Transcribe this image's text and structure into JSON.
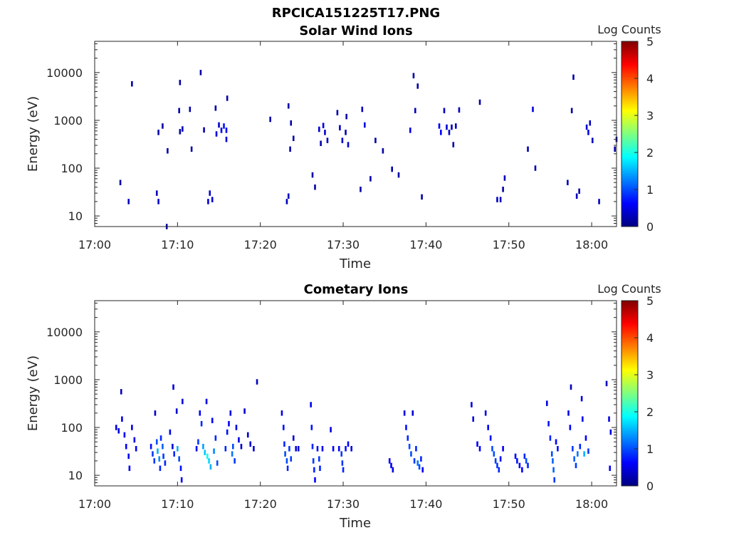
{
  "figure": {
    "title": "RPCICA151225T17.PNG"
  },
  "colorbar": {
    "label": "Log Counts",
    "ticks": [
      "0",
      "1",
      "2",
      "3",
      "4",
      "5"
    ],
    "range": [
      0,
      5
    ],
    "colormap": [
      "#00007f",
      "#0000ff",
      "#007fff",
      "#00ffff",
      "#7fff7f",
      "#ffff00",
      "#ff7f00",
      "#ff0000",
      "#7f0000"
    ]
  },
  "chart_data": [
    {
      "type": "heatmap",
      "title": "Solar Wind Ions",
      "xlabel": "Time",
      "ylabel": "Energy (eV)",
      "yscale": "log",
      "xlim_minutes_after_17_00": [
        0,
        63
      ],
      "ylim": [
        6,
        45000
      ],
      "xticks": [
        "17:00",
        "17:10",
        "17:20",
        "17:30",
        "17:40",
        "17:50",
        "18:00"
      ],
      "yticks": [
        "10",
        "100",
        "1000",
        "10000"
      ],
      "cells": [
        [
          3.1,
          50,
          0.2
        ],
        [
          4.1,
          20,
          0.3
        ],
        [
          4.5,
          5800,
          0.2
        ],
        [
          7.5,
          30,
          0.3
        ],
        [
          7.7,
          20,
          0.4
        ],
        [
          7.7,
          560,
          0.2
        ],
        [
          8.2,
          760,
          0.2
        ],
        [
          8.7,
          6,
          0.2
        ],
        [
          8.8,
          230,
          0.2
        ],
        [
          10.2,
          1600,
          0.2
        ],
        [
          10.3,
          6200,
          0.2
        ],
        [
          10.3,
          580,
          0.2
        ],
        [
          10.6,
          660,
          0.3
        ],
        [
          11.5,
          1700,
          0.2
        ],
        [
          11.7,
          250,
          0.2
        ],
        [
          12.8,
          10000,
          0.2
        ],
        [
          13.2,
          630,
          0.2
        ],
        [
          13.7,
          20,
          0.4
        ],
        [
          13.9,
          30,
          0.4
        ],
        [
          14.2,
          22,
          0.4
        ],
        [
          14.6,
          1800,
          0.2
        ],
        [
          14.7,
          520,
          0.5
        ],
        [
          15.0,
          800,
          0.4
        ],
        [
          15.3,
          620,
          0.5
        ],
        [
          15.6,
          760,
          0.7
        ],
        [
          15.9,
          620,
          0.6
        ],
        [
          16.0,
          2900,
          0.2
        ],
        [
          15.9,
          400,
          0.4
        ],
        [
          21.2,
          1050,
          0.2
        ],
        [
          23.2,
          20,
          0.3
        ],
        [
          23.4,
          26,
          0.3
        ],
        [
          23.4,
          2000,
          0.2
        ],
        [
          23.6,
          250,
          0.2
        ],
        [
          23.7,
          880,
          0.2
        ],
        [
          24.0,
          420,
          0.2
        ],
        [
          26.3,
          72,
          0.2
        ],
        [
          26.6,
          40,
          0.2
        ],
        [
          27.1,
          650,
          0.4
        ],
        [
          27.3,
          330,
          0.2
        ],
        [
          27.6,
          780,
          0.5
        ],
        [
          27.8,
          560,
          0.4
        ],
        [
          28.1,
          380,
          0.3
        ],
        [
          29.3,
          1450,
          0.2
        ],
        [
          29.6,
          700,
          0.4
        ],
        [
          29.9,
          380,
          0.4
        ],
        [
          30.3,
          560,
          0.3
        ],
        [
          30.4,
          1200,
          0.2
        ],
        [
          30.6,
          310,
          0.4
        ],
        [
          32.1,
          36,
          0.2
        ],
        [
          32.3,
          1700,
          0.3
        ],
        [
          32.6,
          800,
          0.5
        ],
        [
          33.3,
          60,
          0.2
        ],
        [
          33.9,
          380,
          0.2
        ],
        [
          34.8,
          230,
          0.2
        ],
        [
          35.9,
          95,
          0.2
        ],
        [
          36.7,
          72,
          0.2
        ],
        [
          38.1,
          620,
          0.5
        ],
        [
          38.5,
          8600,
          0.2
        ],
        [
          38.7,
          1600,
          0.3
        ],
        [
          39.0,
          5200,
          0.2
        ],
        [
          39.5,
          25,
          0.2
        ],
        [
          41.6,
          760,
          0.6
        ],
        [
          41.8,
          560,
          0.6
        ],
        [
          42.2,
          1600,
          0.3
        ],
        [
          42.5,
          720,
          0.4
        ],
        [
          42.8,
          560,
          0.3
        ],
        [
          43.1,
          720,
          0.3
        ],
        [
          43.3,
          310,
          0.2
        ],
        [
          43.6,
          760,
          0.3
        ],
        [
          44.0,
          1650,
          0.3
        ],
        [
          46.5,
          2400,
          0.2
        ],
        [
          48.6,
          22,
          0.3
        ],
        [
          49.0,
          22,
          0.3
        ],
        [
          49.5,
          62,
          0.3
        ],
        [
          49.3,
          36,
          0.2
        ],
        [
          52.3,
          250,
          0.2
        ],
        [
          52.9,
          1700,
          0.5
        ],
        [
          53.2,
          100,
          0.2
        ],
        [
          57.1,
          50,
          0.3
        ],
        [
          57.6,
          1600,
          0.2
        ],
        [
          57.8,
          8000,
          0.2
        ],
        [
          58.2,
          26,
          0.3
        ],
        [
          58.5,
          33,
          0.2
        ],
        [
          59.4,
          720,
          0.4
        ],
        [
          59.6,
          560,
          0.5
        ],
        [
          59.8,
          880,
          0.3
        ],
        [
          60.1,
          380,
          0.3
        ],
        [
          60.9,
          20,
          0.3
        ],
        [
          62.8,
          250,
          0.2
        ],
        [
          63.0,
          400,
          0.2
        ]
      ]
    },
    {
      "type": "heatmap",
      "title": "Cometary Ions",
      "xlabel": "Time",
      "ylabel": "Energy (eV)",
      "yscale": "log",
      "xlim_minutes_after_17_00": [
        0,
        63
      ],
      "ylim": [
        6,
        45000
      ],
      "xticks": [
        "17:00",
        "17:10",
        "17:20",
        "17:30",
        "17:40",
        "17:50",
        "18:00"
      ],
      "yticks": [
        "10",
        "100",
        "1000",
        "10000"
      ],
      "cells": [
        [
          2.6,
          100,
          0.4
        ],
        [
          2.9,
          85,
          0.5
        ],
        [
          3.2,
          560,
          0.3
        ],
        [
          3.3,
          150,
          0.5
        ],
        [
          3.6,
          70,
          0.6
        ],
        [
          3.8,
          40,
          0.6
        ],
        [
          4.1,
          25,
          0.6
        ],
        [
          4.2,
          14,
          0.6
        ],
        [
          4.5,
          100,
          0.5
        ],
        [
          4.8,
          55,
          0.5
        ],
        [
          5.0,
          36,
          0.6
        ],
        [
          6.8,
          40,
          0.7
        ],
        [
          7.0,
          28,
          0.9
        ],
        [
          7.2,
          20,
          0.9
        ],
        [
          7.3,
          200,
          0.4
        ],
        [
          7.5,
          50,
          1.0
        ],
        [
          7.6,
          32,
          1.5
        ],
        [
          7.8,
          22,
          1.3
        ],
        [
          7.9,
          14,
          0.8
        ],
        [
          8.0,
          60,
          0.8
        ],
        [
          8.2,
          40,
          1.1
        ],
        [
          8.3,
          25,
          0.9
        ],
        [
          8.5,
          18,
          0.8
        ],
        [
          9.1,
          80,
          0.5
        ],
        [
          9.4,
          40,
          0.5
        ],
        [
          9.5,
          700,
          0.4
        ],
        [
          9.6,
          28,
          0.8
        ],
        [
          9.9,
          220,
          0.4
        ],
        [
          10.0,
          36,
          1.5
        ],
        [
          10.2,
          22,
          1.0
        ],
        [
          10.4,
          14,
          0.7
        ],
        [
          10.5,
          8,
          0.6
        ],
        [
          10.6,
          350,
          0.5
        ],
        [
          12.3,
          36,
          0.6
        ],
        [
          12.5,
          50,
          0.9
        ],
        [
          12.7,
          200,
          0.6
        ],
        [
          12.9,
          120,
          0.8
        ],
        [
          13.1,
          40,
          1.4
        ],
        [
          13.3,
          30,
          1.6
        ],
        [
          13.5,
          350,
          0.5
        ],
        [
          13.6,
          25,
          1.9
        ],
        [
          13.8,
          20,
          1.7
        ],
        [
          14.0,
          15,
          1.5
        ],
        [
          14.2,
          140,
          0.6
        ],
        [
          14.4,
          32,
          1.3
        ],
        [
          14.6,
          60,
          0.8
        ],
        [
          14.8,
          18,
          1.0
        ],
        [
          15.8,
          36,
          0.8
        ],
        [
          16.0,
          80,
          0.7
        ],
        [
          16.2,
          120,
          0.6
        ],
        [
          16.4,
          200,
          0.5
        ],
        [
          16.6,
          28,
          1.2
        ],
        [
          16.7,
          40,
          1.0
        ],
        [
          16.9,
          20,
          0.9
        ],
        [
          17.1,
          100,
          0.5
        ],
        [
          17.4,
          55,
          0.5
        ],
        [
          17.7,
          40,
          0.4
        ],
        [
          18.1,
          220,
          0.4
        ],
        [
          18.5,
          70,
          0.4
        ],
        [
          18.8,
          45,
          0.4
        ],
        [
          19.2,
          36,
          0.4
        ],
        [
          19.6,
          900,
          0.3
        ],
        [
          22.6,
          200,
          0.5
        ],
        [
          22.8,
          100,
          0.7
        ],
        [
          22.9,
          45,
          0.8
        ],
        [
          23.0,
          28,
          1.0
        ],
        [
          23.2,
          20,
          1.0
        ],
        [
          23.3,
          14,
          0.8
        ],
        [
          23.5,
          36,
          0.9
        ],
        [
          23.7,
          22,
          0.9
        ],
        [
          24.0,
          60,
          0.4
        ],
        [
          24.3,
          36,
          0.5
        ],
        [
          24.6,
          36,
          0.4
        ],
        [
          26.1,
          300,
          0.6
        ],
        [
          26.2,
          100,
          0.7
        ],
        [
          26.3,
          40,
          0.8
        ],
        [
          26.4,
          20,
          0.9
        ],
        [
          26.5,
          13,
          0.8
        ],
        [
          26.6,
          8,
          0.6
        ],
        [
          26.9,
          36,
          0.7
        ],
        [
          27.1,
          22,
          0.9
        ],
        [
          27.2,
          14,
          0.8
        ],
        [
          27.5,
          36,
          0.6
        ],
        [
          28.5,
          90,
          0.5
        ],
        [
          28.8,
          36,
          0.6
        ],
        [
          29.5,
          36,
          0.6
        ],
        [
          29.8,
          28,
          0.9
        ],
        [
          29.9,
          18,
          0.9
        ],
        [
          30.0,
          13,
          0.8
        ],
        [
          30.3,
          36,
          0.7
        ],
        [
          30.6,
          45,
          0.6
        ],
        [
          31.0,
          36,
          0.5
        ],
        [
          35.6,
          20,
          0.6
        ],
        [
          35.8,
          16,
          0.6
        ],
        [
          36.0,
          13,
          0.5
        ],
        [
          37.4,
          200,
          0.5
        ],
        [
          37.6,
          100,
          0.7
        ],
        [
          37.8,
          60,
          0.8
        ],
        [
          38.0,
          40,
          1.0
        ],
        [
          38.2,
          28,
          1.0
        ],
        [
          38.4,
          200,
          0.4
        ],
        [
          38.6,
          20,
          0.9
        ],
        [
          38.8,
          36,
          0.8
        ],
        [
          39.0,
          18,
          1.2
        ],
        [
          39.2,
          15,
          1.0
        ],
        [
          39.4,
          22,
          0.8
        ],
        [
          39.6,
          13,
          0.6
        ],
        [
          45.5,
          300,
          0.5
        ],
        [
          45.7,
          150,
          0.5
        ],
        [
          46.2,
          45,
          0.6
        ],
        [
          46.5,
          36,
          0.6
        ],
        [
          47.2,
          200,
          0.5
        ],
        [
          47.5,
          100,
          0.6
        ],
        [
          47.8,
          60,
          0.7
        ],
        [
          48.0,
          36,
          1.0
        ],
        [
          48.2,
          28,
          1.0
        ],
        [
          48.4,
          20,
          0.9
        ],
        [
          48.6,
          16,
          0.9
        ],
        [
          48.8,
          13,
          0.8
        ],
        [
          49.0,
          22,
          0.7
        ],
        [
          49.3,
          36,
          0.6
        ],
        [
          50.8,
          25,
          0.6
        ],
        [
          51.0,
          20,
          0.7
        ],
        [
          51.3,
          16,
          0.6
        ],
        [
          51.6,
          13,
          0.6
        ],
        [
          51.9,
          25,
          0.8
        ],
        [
          52.1,
          20,
          1.0
        ],
        [
          52.3,
          16,
          0.8
        ],
        [
          54.6,
          320,
          0.5
        ],
        [
          54.8,
          120,
          0.7
        ],
        [
          55.0,
          60,
          0.8
        ],
        [
          55.2,
          28,
          1.0
        ],
        [
          55.3,
          20,
          1.1
        ],
        [
          55.4,
          13,
          1.1
        ],
        [
          55.5,
          8,
          0.9
        ],
        [
          55.7,
          50,
          0.6
        ],
        [
          55.9,
          36,
          0.7
        ],
        [
          57.2,
          200,
          0.5
        ],
        [
          57.4,
          100,
          0.6
        ],
        [
          57.5,
          700,
          0.3
        ],
        [
          57.7,
          36,
          0.9
        ],
        [
          57.9,
          22,
          1.1
        ],
        [
          58.1,
          16,
          0.9
        ],
        [
          58.3,
          28,
          1.2
        ],
        [
          58.6,
          40,
          0.8
        ],
        [
          58.8,
          400,
          0.5
        ],
        [
          58.9,
          150,
          0.6
        ],
        [
          59.1,
          28,
          1.5
        ],
        [
          59.3,
          60,
          0.6
        ],
        [
          59.6,
          32,
          0.9
        ],
        [
          61.8,
          830,
          0.3
        ],
        [
          62.1,
          150,
          0.5
        ],
        [
          62.3,
          80,
          0.5
        ],
        [
          62.2,
          14,
          0.6
        ]
      ]
    }
  ]
}
